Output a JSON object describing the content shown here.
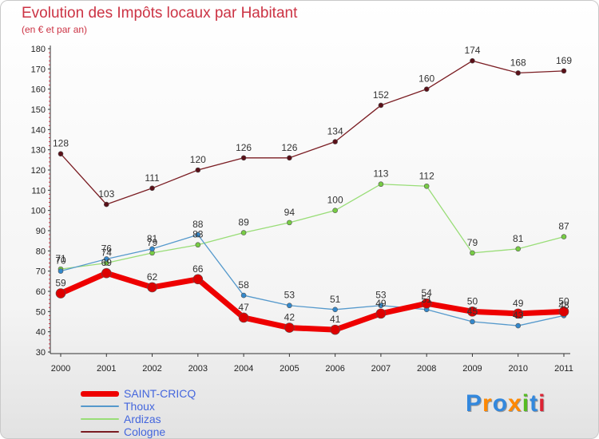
{
  "title": "Evolution des Impôts locaux par Habitant",
  "subtitle": "(en € et par an)",
  "chart_data": {
    "type": "line",
    "title": "Evolution des Impôts locaux par Habitant",
    "subtitle": "(en € et par an)",
    "xlabel": "",
    "ylabel": "",
    "ylim": [
      30,
      180
    ],
    "ytick_step": 10,
    "yticks": [
      "30",
      "40",
      "50",
      "60",
      "70",
      "80",
      "90",
      "100",
      "110",
      "120",
      "130",
      "140",
      "150",
      "160",
      "170",
      "180"
    ],
    "categories": [
      "2000",
      "2001",
      "2002",
      "2003",
      "2004",
      "2005",
      "2006",
      "2007",
      "2008",
      "2009",
      "2010",
      "2011"
    ],
    "grid": false,
    "legend_position": "bottom-left",
    "series": [
      {
        "name": "Cologne",
        "color": "#7a1c22",
        "point_color": "#5a1018",
        "width": 1.3,
        "radius": 3,
        "values": [
          128,
          103,
          111,
          120,
          126,
          126,
          134,
          152,
          160,
          174,
          168,
          169
        ],
        "labels": [
          "128",
          "103",
          "111",
          "120",
          "126",
          "126",
          "134",
          "152",
          "160",
          "174",
          "168",
          "169"
        ]
      },
      {
        "name": "Ardizas",
        "color": "#99dd77",
        "point_color": "#77cc44",
        "width": 1.3,
        "radius": 3,
        "values": [
          71,
          74,
          79,
          83,
          89,
          94,
          100,
          113,
          112,
          79,
          81,
          87
        ],
        "labels": [
          "71",
          "74",
          "79",
          "83",
          "89",
          "94",
          "100",
          "113",
          "112",
          "79",
          "81",
          "87"
        ]
      },
      {
        "name": "Thoux",
        "color": "#5599cc",
        "point_color": "#3388cc",
        "width": 1.3,
        "radius": 3,
        "values": [
          70,
          76,
          81,
          88,
          58,
          53,
          51,
          53,
          51,
          45,
          43,
          48
        ],
        "labels": [
          "70",
          "76",
          "81",
          "88",
          "58",
          "53",
          "51",
          "53",
          "51",
          "45",
          "43",
          "48"
        ]
      },
      {
        "name": "SAINT-CRICQ",
        "color": "#ee0000",
        "point_color": "#dd0000",
        "width": 7,
        "radius": 6,
        "values": [
          59,
          69,
          62,
          66,
          47,
          42,
          41,
          49,
          54,
          50,
          49,
          50
        ],
        "labels": [
          "59",
          "69",
          "62",
          "66",
          "47",
          "42",
          "41",
          "49",
          "54",
          "50",
          "49",
          "50"
        ]
      }
    ]
  },
  "legend": [
    {
      "name": "SAINT-CRICQ",
      "color": "#ee0000",
      "thickness": 7
    },
    {
      "name": "Thoux",
      "color": "#5599cc",
      "thickness": 2
    },
    {
      "name": "Ardizas",
      "color": "#99dd77",
      "thickness": 2
    },
    {
      "name": "Cologne",
      "color": "#7a1c22",
      "thickness": 2
    }
  ],
  "logo": {
    "text": "Proxiti",
    "letters": [
      {
        "char": "P",
        "color": "#3388dd"
      },
      {
        "char": "r",
        "color": "#ff8800"
      },
      {
        "char": "o",
        "color": "#3388dd"
      },
      {
        "char": "x",
        "color": "#ff8800"
      },
      {
        "char": "i",
        "color": "#55bb22"
      },
      {
        "char": "t",
        "color": "#3388dd"
      },
      {
        "char": "i",
        "color": "#dd2233"
      }
    ]
  }
}
